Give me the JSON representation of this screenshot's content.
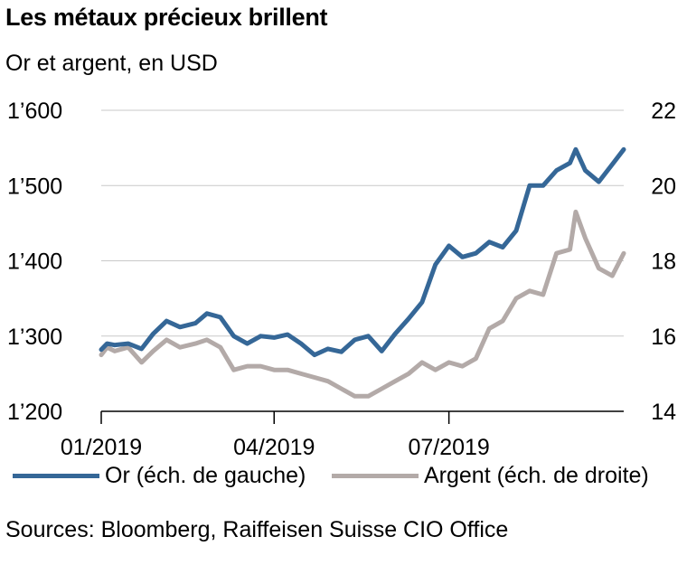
{
  "title": "Les métaux précieux brillent",
  "subtitle": "Or et argent, en USD",
  "source": "Sources: Bloomberg, Raiffeisen Suisse CIO Office",
  "colors": {
    "gold": "#356797",
    "silver": "#b3aaa8",
    "grid": "#c9c9c9",
    "axis": "#000000"
  },
  "chart_data": {
    "type": "line",
    "x_ticks": [
      "01/2019",
      "04/2019",
      "07/2019"
    ],
    "y_left": {
      "ticks": [
        "1’200",
        "1’300",
        "1’400",
        "1’500",
        "1’600"
      ],
      "range": [
        1200,
        1600
      ]
    },
    "y_right": {
      "ticks": [
        "14",
        "16",
        "18",
        "20",
        "22"
      ],
      "range": [
        14,
        22
      ]
    },
    "grid": true,
    "legend_position": "bottom",
    "series": [
      {
        "name": "Or (éch. de gauche)",
        "axis": "left",
        "x": [
          "2019-01-01",
          "2019-01-04",
          "2019-01-08",
          "2019-01-15",
          "2019-01-22",
          "2019-01-28",
          "2019-02-04",
          "2019-02-11",
          "2019-02-19",
          "2019-02-25",
          "2019-03-04",
          "2019-03-11",
          "2019-03-18",
          "2019-03-25",
          "2019-04-01",
          "2019-04-08",
          "2019-04-15",
          "2019-04-22",
          "2019-04-29",
          "2019-05-06",
          "2019-05-13",
          "2019-05-20",
          "2019-05-27",
          "2019-06-03",
          "2019-06-10",
          "2019-06-17",
          "2019-06-24",
          "2019-07-01",
          "2019-07-08",
          "2019-07-15",
          "2019-07-22",
          "2019-07-29",
          "2019-08-05",
          "2019-08-12",
          "2019-08-19",
          "2019-08-26",
          "2019-09-02",
          "2019-09-05",
          "2019-09-10",
          "2019-09-17",
          "2019-09-24",
          "2019-09-30"
        ],
        "values": [
          1282,
          1290,
          1288,
          1290,
          1283,
          1303,
          1320,
          1312,
          1317,
          1330,
          1325,
          1300,
          1290,
          1300,
          1298,
          1302,
          1290,
          1275,
          1283,
          1279,
          1295,
          1300,
          1280,
          1303,
          1323,
          1345,
          1395,
          1420,
          1405,
          1410,
          1425,
          1418,
          1440,
          1500,
          1500,
          1520,
          1530,
          1548,
          1520,
          1505,
          1528,
          1548
        ]
      },
      {
        "name": "Argent (éch. de droite)",
        "axis": "right",
        "x": [
          "2019-01-01",
          "2019-01-04",
          "2019-01-08",
          "2019-01-15",
          "2019-01-22",
          "2019-01-28",
          "2019-02-04",
          "2019-02-11",
          "2019-02-19",
          "2019-02-25",
          "2019-03-04",
          "2019-03-11",
          "2019-03-18",
          "2019-03-25",
          "2019-04-01",
          "2019-04-08",
          "2019-04-15",
          "2019-04-22",
          "2019-04-29",
          "2019-05-06",
          "2019-05-13",
          "2019-05-20",
          "2019-05-27",
          "2019-06-03",
          "2019-06-10",
          "2019-06-17",
          "2019-06-24",
          "2019-07-01",
          "2019-07-08",
          "2019-07-15",
          "2019-07-22",
          "2019-07-29",
          "2019-08-05",
          "2019-08-12",
          "2019-08-19",
          "2019-08-26",
          "2019-09-02",
          "2019-09-05",
          "2019-09-10",
          "2019-09-17",
          "2019-09-24",
          "2019-09-30"
        ],
        "values": [
          15.5,
          15.7,
          15.6,
          15.7,
          15.3,
          15.6,
          15.9,
          15.7,
          15.8,
          15.9,
          15.7,
          15.1,
          15.2,
          15.2,
          15.1,
          15.1,
          15.0,
          14.9,
          14.8,
          14.6,
          14.4,
          14.4,
          14.6,
          14.8,
          15.0,
          15.3,
          15.1,
          15.3,
          15.2,
          15.4,
          16.2,
          16.4,
          17.0,
          17.2,
          17.1,
          18.2,
          18.3,
          19.3,
          18.6,
          17.8,
          17.6,
          18.2
        ]
      }
    ]
  }
}
